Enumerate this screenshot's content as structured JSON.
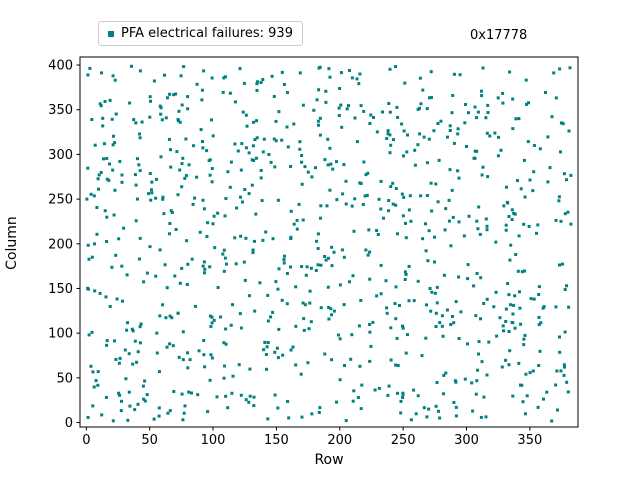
{
  "figure": {
    "legend": {
      "label": "PFA electrical failures: 939"
    },
    "annotation": "0x17778",
    "xlabel": "Row",
    "ylabel": "Column"
  },
  "chart_data": {
    "type": "scatter",
    "title": "",
    "xlabel": "Row",
    "ylabel": "Column",
    "legend_label": "PFA electrical failures: 939",
    "annotation": "0x17778",
    "num_points": 939,
    "color": "#008080",
    "marker": "square",
    "marker_size_px": 3,
    "xlim": [
      -5,
      388
    ],
    "ylim": [
      -5,
      409
    ],
    "data_xrange": [
      0,
      383
    ],
    "data_yrange": [
      0,
      400
    ],
    "xticks": [
      0,
      50,
      100,
      150,
      200,
      250,
      300,
      350
    ],
    "yticks": [
      0,
      50,
      100,
      150,
      200,
      250,
      300,
      350,
      400
    ],
    "grid": false,
    "legend_position": "upper-left-above-axes",
    "points_note": "939 points uniformly scattered over Row 0-383, Column 0-400; individual coordinates not legible at screenshot scale, regenerated with seeded PRNG",
    "seed": 17778
  }
}
